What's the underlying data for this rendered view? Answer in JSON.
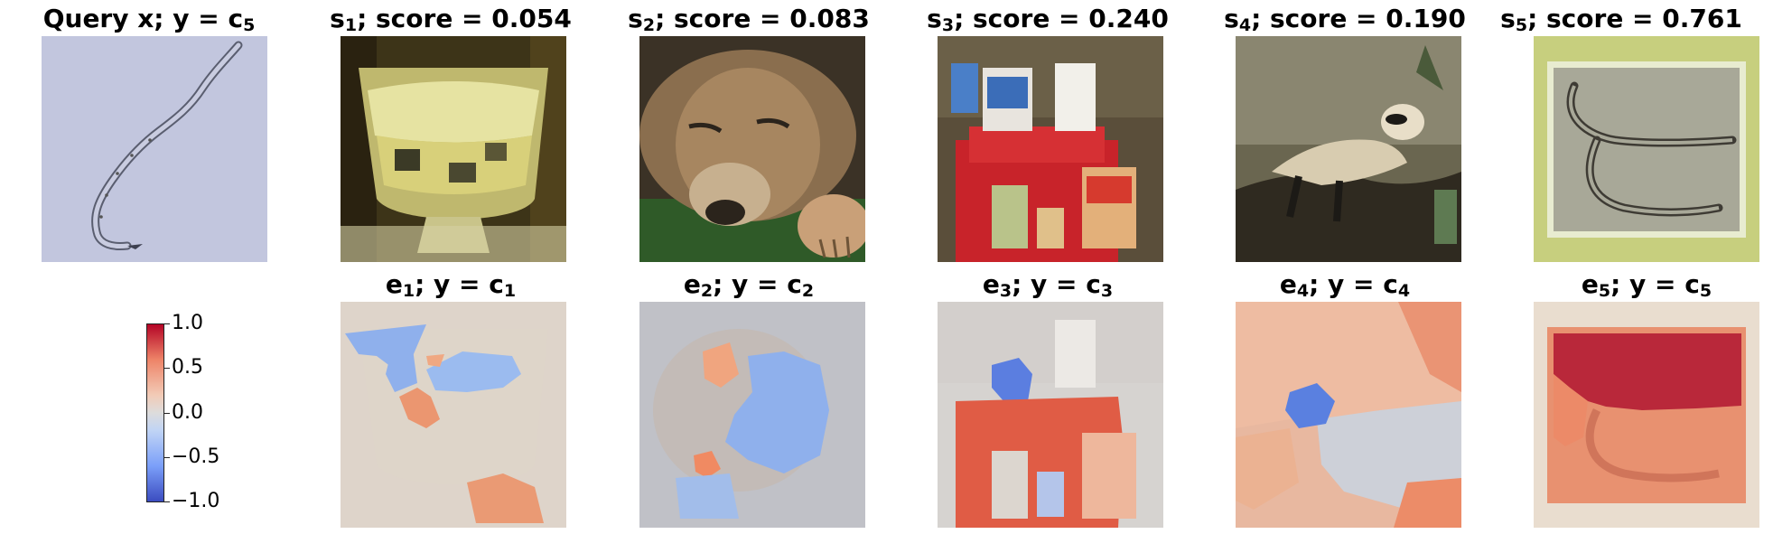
{
  "top_row": [
    {
      "id": "query",
      "title_pre": "Query x; y = c",
      "title_sub": "5",
      "title_post": "",
      "depicts": "nematode-sketch"
    },
    {
      "id": "s1",
      "title_pre": "s",
      "title_sub": "1",
      "title_post": "; score = 0.054",
      "depicts": "dessert-bowl"
    },
    {
      "id": "s2",
      "title_pre": "s",
      "title_sub": "2",
      "title_post": "; score = 0.083",
      "depicts": "lioness"
    },
    {
      "id": "s3",
      "title_pre": "s",
      "title_sub": "3",
      "title_post": "; score = 0.240",
      "depicts": "book-display"
    },
    {
      "id": "s4",
      "title_pre": "s",
      "title_sub": "4",
      "title_post": "; score = 0.190",
      "depicts": "ferret"
    },
    {
      "id": "s5",
      "title_pre": "s",
      "title_sub": "5",
      "title_post": "; score = 0.761",
      "depicts": "nematode-photo"
    }
  ],
  "bottom_row": [
    {
      "id": "e1",
      "title_pre": "e",
      "title_sub": "1",
      "title_mid": "; y = c",
      "title_sub2": "1",
      "depicts": "explanation-heatmap"
    },
    {
      "id": "e2",
      "title_pre": "e",
      "title_sub": "2",
      "title_mid": "; y = c",
      "title_sub2": "2",
      "depicts": "explanation-heatmap"
    },
    {
      "id": "e3",
      "title_pre": "e",
      "title_sub": "3",
      "title_mid": "; y = c",
      "title_sub2": "3",
      "depicts": "explanation-heatmap"
    },
    {
      "id": "e4",
      "title_pre": "e",
      "title_sub": "4",
      "title_mid": "; y = c",
      "title_sub2": "4",
      "depicts": "explanation-heatmap"
    },
    {
      "id": "e5",
      "title_pre": "e",
      "title_sub": "5",
      "title_mid": "; y = c",
      "title_sub2": "5",
      "depicts": "explanation-heatmap"
    }
  ],
  "colorbar": {
    "ticks": [
      "1.0",
      "0.5",
      "0.0",
      "−0.5",
      "−1.0"
    ],
    "colormap": "coolwarm",
    "min": -1.0,
    "max": 1.0,
    "colors": {
      "neg": "#3b4cc0",
      "mid": "#dddcdc",
      "pos": "#b40426"
    }
  }
}
